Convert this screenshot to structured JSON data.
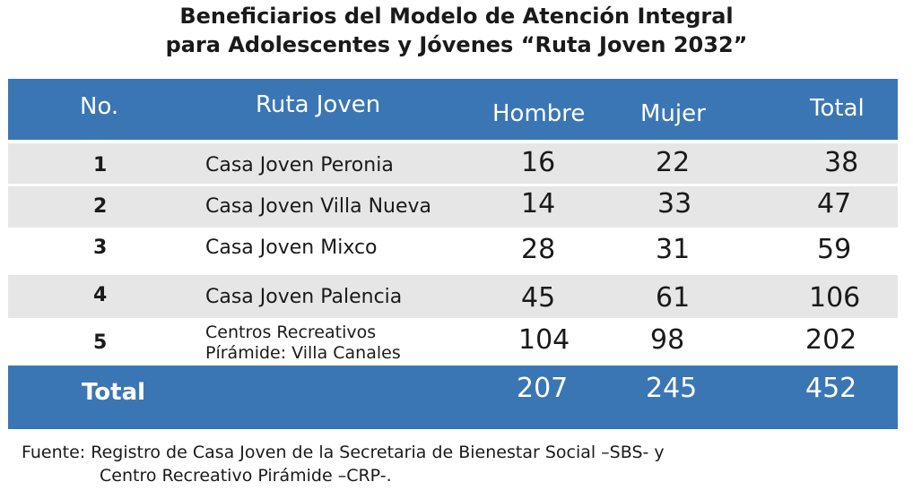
{
  "title": {
    "line1": "Beneficiarios del Modelo de Atención Integral",
    "line2": "para Adolescentes y Jóvenes “Ruta Joven 2032”"
  },
  "table": {
    "headers": [
      "No.",
      "Ruta Joven",
      "Hombre",
      "Mujer",
      "Total"
    ],
    "rows": [
      {
        "no": "1",
        "name": "Casa Joven Peronia",
        "hombre": "16",
        "mujer": "22",
        "total": "38"
      },
      {
        "no": "2",
        "name": "Casa Joven Villa Nueva",
        "hombre": "14",
        "mujer": "33",
        "total": "47"
      },
      {
        "no": "3",
        "name": "Casa Joven Mixco",
        "hombre": "28",
        "mujer": "31",
        "total": "59"
      },
      {
        "no": "4",
        "name": "Casa Joven Palencia",
        "hombre": "45",
        "mujer": "61",
        "total": "106"
      },
      {
        "no": "5",
        "name_line1": "Centros Recreativos",
        "name_line2": "Pírámide: Villa Canales",
        "hombre": "104",
        "mujer": "98",
        "total": "202"
      }
    ],
    "totals": {
      "label": "Total",
      "hombre": "207",
      "mujer": "245",
      "total": "452"
    }
  },
  "source": {
    "line1": "Fuente: Registro de Casa Joven de la Secretaria de Bienestar Social –SBS- y",
    "line2": "Centro Recreativo Pirámide –CRP-."
  },
  "colors": {
    "header_bg": "#3b76b4",
    "row_shade": "#e6e6e6",
    "header_text": "#ffffff"
  }
}
